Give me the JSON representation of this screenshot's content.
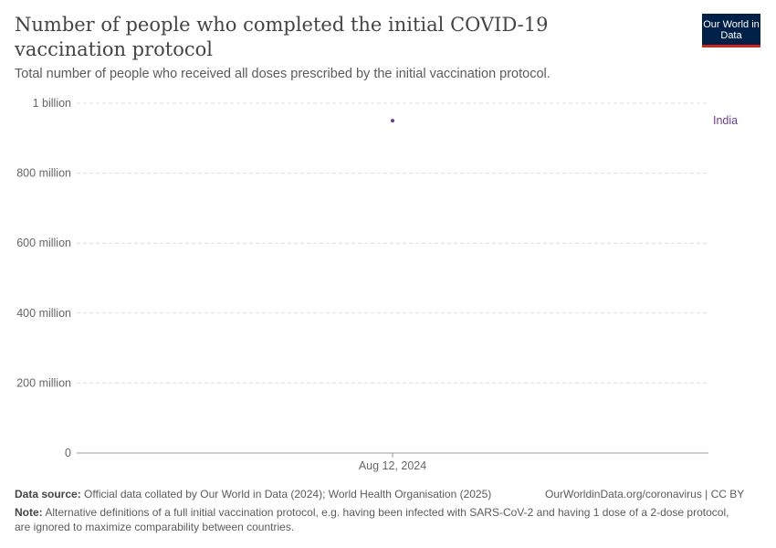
{
  "header": {
    "title": "Number of people who completed the initial COVID-19 vaccination protocol",
    "subtitle": "Total number of people who received all doses prescribed by the initial vaccination protocol.",
    "logo": "Our World in Data"
  },
  "chart_data": {
    "type": "scatter",
    "title": "Number of people who completed the initial COVID-19 vaccination protocol",
    "ylim": [
      0,
      1000000000
    ],
    "yticks": [
      {
        "value": 0,
        "label": "0"
      },
      {
        "value": 200000000,
        "label": "200 million"
      },
      {
        "value": 400000000,
        "label": "400 million"
      },
      {
        "value": 600000000,
        "label": "600 million"
      },
      {
        "value": 800000000,
        "label": "800 million"
      },
      {
        "value": 1000000000,
        "label": "1 billion"
      }
    ],
    "xticks": [
      "Aug 12, 2024"
    ],
    "series": [
      {
        "name": "India",
        "color": "#6d3e91",
        "points": [
          {
            "x": "Aug 12, 2024",
            "y": 950000000
          }
        ]
      }
    ],
    "grid": true
  },
  "footer": {
    "source_label": "Data source:",
    "source": "Official data collated by Our World in Data (2024); World Health Organisation (2025)",
    "url": "OurWorldinData.org/coronavirus | CC BY",
    "note_label": "Note:",
    "note": "Alternative definitions of a full initial vaccination protocol, e.g. having been infected with SARS-CoV-2 and having 1 dose of a 2-dose protocol, are ignored to maximize comparability between countries."
  }
}
